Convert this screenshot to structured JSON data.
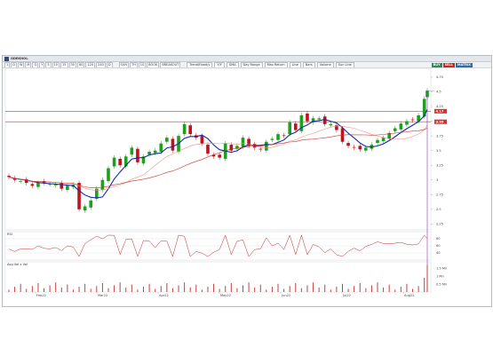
{
  "window": {
    "symbol": "GDEKHOL",
    "toolbar": [
      "1",
      "D",
      "W",
      "M",
      "Q",
      "Y",
      "5",
      "10",
      "15",
      "30",
      "60",
      "120",
      "240",
      "D"
    ],
    "toolbar_mid": [
      "SUN",
      "TH",
      "1S",
      "BOOK",
      "BREAKOUT"
    ],
    "toolbar_right": [
      "Trend/Fixed/y",
      "Y/Y",
      "SMA",
      "Day Range",
      "Max Return",
      "Line",
      "Bars",
      "Volume",
      "Sun Line"
    ],
    "tags": [
      {
        "label": "BUY",
        "color": "#2e8b57"
      },
      {
        "label": "SELL",
        "color": "#c62828"
      },
      {
        "label": "MATRIX",
        "color": "#2a6db0"
      }
    ]
  },
  "price_axis": {
    "ticks": [
      "4.75",
      "4.5",
      "4.25",
      "4",
      "3.75",
      "3.5",
      "3.25",
      "3",
      "2.75",
      "2.5",
      "2.25"
    ],
    "last_price_tag": "4.17",
    "level_tag": "3.99",
    "colors": {
      "up": "#1ea01e",
      "down": "#c0121a",
      "sma_fast": "#1528a8",
      "sma_mid": "#f0928c",
      "sma_slow": "#cc3028",
      "level": "#d83030",
      "cursor": "#8a30c8"
    }
  },
  "panels": {
    "rsi_label": "RSI",
    "rsi_ticks": [
      "80",
      "60",
      "40"
    ],
    "volume_label": "Avg Vol x Vol",
    "volume_ticks": [
      "1.5 Mn",
      "1 Mn",
      "0.5 Mn"
    ]
  },
  "time_axis": {
    "labels": [
      "Feb22",
      "Mar22",
      "Apr22",
      "May22",
      "Jun22",
      "Jul22",
      "Aug22"
    ]
  },
  "chart_data": {
    "type": "candlestick",
    "symbol": "GDEKHOL",
    "y_axis_ticks": [
      4.75,
      4.5,
      4.25,
      4,
      3.75,
      3.5,
      3.25,
      3,
      2.75,
      2.5,
      2.25
    ],
    "x_axis_labels": [
      "Feb22",
      "Mar22",
      "Apr22",
      "May22",
      "Jun22",
      "Jul22",
      "Aug22"
    ],
    "ylim": [
      2.15,
      4.9
    ],
    "horizontal_levels": [
      4.17,
      3.99
    ],
    "approx_close_path": [
      [
        0,
        3.05
      ],
      [
        4,
        3.0
      ],
      [
        8,
        2.98
      ],
      [
        12,
        2.95
      ],
      [
        16,
        2.9
      ],
      [
        20,
        2.95
      ],
      [
        24,
        2.95
      ],
      [
        28,
        2.93
      ],
      [
        32,
        2.92
      ],
      [
        36,
        2.85
      ],
      [
        40,
        2.9
      ],
      [
        44,
        2.92
      ],
      [
        48,
        2.5
      ],
      [
        52,
        2.55
      ],
      [
        56,
        2.65
      ],
      [
        60,
        2.85
      ],
      [
        64,
        3.0
      ],
      [
        68,
        3.2
      ],
      [
        72,
        3.38
      ],
      [
        76,
        3.25
      ],
      [
        80,
        3.4
      ],
      [
        84,
        3.55
      ],
      [
        88,
        3.3
      ],
      [
        92,
        3.4
      ],
      [
        96,
        3.48
      ],
      [
        100,
        3.5
      ],
      [
        104,
        3.62
      ],
      [
        108,
        3.72
      ],
      [
        112,
        3.5
      ],
      [
        116,
        3.75
      ],
      [
        120,
        3.95
      ],
      [
        124,
        3.78
      ],
      [
        128,
        3.72
      ],
      [
        132,
        3.62
      ],
      [
        136,
        3.45
      ],
      [
        140,
        3.4
      ],
      [
        144,
        3.38
      ],
      [
        148,
        3.62
      ],
      [
        152,
        3.5
      ],
      [
        156,
        3.58
      ],
      [
        160,
        3.72
      ],
      [
        164,
        3.58
      ],
      [
        168,
        3.55
      ],
      [
        172,
        3.52
      ],
      [
        176,
        3.65
      ],
      [
        180,
        3.7
      ],
      [
        184,
        3.78
      ],
      [
        188,
        3.75
      ],
      [
        192,
        3.98
      ],
      [
        196,
        3.85
      ],
      [
        200,
        4.1
      ],
      [
        204,
        4.0
      ],
      [
        208,
        4.05
      ],
      [
        212,
        4.05
      ],
      [
        216,
        3.95
      ],
      [
        220,
        3.95
      ],
      [
        224,
        3.85
      ],
      [
        228,
        3.65
      ],
      [
        232,
        3.58
      ],
      [
        236,
        3.55
      ],
      [
        240,
        3.52
      ],
      [
        244,
        3.55
      ],
      [
        248,
        3.6
      ],
      [
        252,
        3.68
      ],
      [
        256,
        3.72
      ],
      [
        260,
        3.8
      ],
      [
        264,
        3.88
      ],
      [
        268,
        3.96
      ],
      [
        272,
        4.0
      ],
      [
        276,
        4.02
      ],
      [
        280,
        4.1
      ],
      [
        284,
        4.38
      ],
      [
        286,
        4.52
      ]
    ],
    "series": [
      {
        "name": "SMA fast",
        "color": "#1528a8"
      },
      {
        "name": "SMA mid",
        "color": "#f0928c"
      },
      {
        "name": "SMA slow",
        "color": "#cc3028"
      }
    ]
  }
}
